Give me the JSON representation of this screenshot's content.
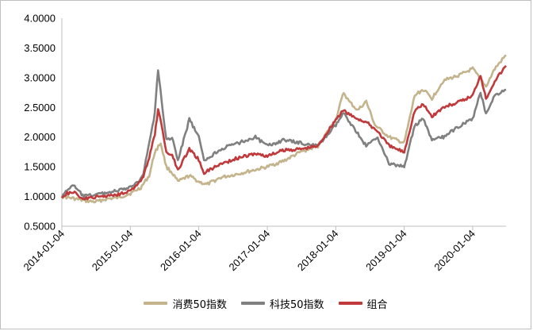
{
  "chart_data": {
    "type": "line",
    "title": "",
    "xlabel": "",
    "ylabel": "",
    "ylim": [
      0.5,
      4.0
    ],
    "y_ticks": [
      "0.5000",
      "1.0000",
      "1.5000",
      "2.0000",
      "2.5000",
      "3.0000",
      "3.5000",
      "4.0000"
    ],
    "x_range": [
      "2014-01-04",
      "2020-06-30"
    ],
    "x_ticks": [
      "2014-01-04",
      "2015-01-04",
      "2016-01-04",
      "2017-01-04",
      "2018-01-04",
      "2019-01-04",
      "2020-01-04"
    ],
    "grid": false,
    "legend": "bottom",
    "series": [
      {
        "name": "消费50指数",
        "color": "#c4b48c",
        "points": [
          [
            "2014-01-04",
            1.0
          ],
          [
            "2014-03-01",
            0.97
          ],
          [
            "2014-05-01",
            0.93
          ],
          [
            "2014-07-01",
            0.91
          ],
          [
            "2014-09-01",
            0.96
          ],
          [
            "2014-11-01",
            0.98
          ],
          [
            "2015-01-04",
            1.05
          ],
          [
            "2015-03-01",
            1.15
          ],
          [
            "2015-04-15",
            1.35
          ],
          [
            "2015-05-15",
            1.75
          ],
          [
            "2015-06-15",
            1.9
          ],
          [
            "2015-07-15",
            1.5
          ],
          [
            "2015-08-15",
            1.4
          ],
          [
            "2015-09-15",
            1.25
          ],
          [
            "2015-11-15",
            1.35
          ],
          [
            "2016-01-04",
            1.25
          ],
          [
            "2016-02-15",
            1.2
          ],
          [
            "2016-05-01",
            1.32
          ],
          [
            "2016-08-01",
            1.38
          ],
          [
            "2016-11-01",
            1.45
          ],
          [
            "2017-01-04",
            1.5
          ],
          [
            "2017-04-01",
            1.6
          ],
          [
            "2017-07-01",
            1.75
          ],
          [
            "2017-10-01",
            1.85
          ],
          [
            "2018-01-04",
            2.3
          ],
          [
            "2018-02-15",
            2.75
          ],
          [
            "2018-03-15",
            2.6
          ],
          [
            "2018-05-01",
            2.45
          ],
          [
            "2018-06-15",
            2.6
          ],
          [
            "2018-08-01",
            2.2
          ],
          [
            "2018-10-15",
            2.0
          ],
          [
            "2019-01-04",
            1.9
          ],
          [
            "2019-03-01",
            2.7
          ],
          [
            "2019-04-15",
            2.8
          ],
          [
            "2019-06-01",
            2.65
          ],
          [
            "2019-08-01",
            2.95
          ],
          [
            "2019-11-01",
            3.05
          ],
          [
            "2020-01-04",
            3.15
          ],
          [
            "2020-03-15",
            2.85
          ],
          [
            "2020-05-01",
            3.15
          ],
          [
            "2020-06-30",
            3.38
          ]
        ]
      },
      {
        "name": "科技50指数",
        "color": "#808080",
        "points": [
          [
            "2014-01-04",
            1.0
          ],
          [
            "2014-02-01",
            1.1
          ],
          [
            "2014-03-01",
            1.2
          ],
          [
            "2014-05-01",
            1.0
          ],
          [
            "2014-08-01",
            1.05
          ],
          [
            "2014-11-01",
            1.1
          ],
          [
            "2015-01-04",
            1.15
          ],
          [
            "2015-02-15",
            1.25
          ],
          [
            "2015-03-15",
            1.4
          ],
          [
            "2015-04-15",
            1.9
          ],
          [
            "2015-05-15",
            2.4
          ],
          [
            "2015-06-01",
            3.15
          ],
          [
            "2015-06-20",
            2.6
          ],
          [
            "2015-07-15",
            1.95
          ],
          [
            "2015-08-15",
            2.0
          ],
          [
            "2015-09-15",
            1.6
          ],
          [
            "2015-11-15",
            2.3
          ],
          [
            "2016-01-04",
            2.0
          ],
          [
            "2016-02-01",
            1.6
          ],
          [
            "2016-05-01",
            1.8
          ],
          [
            "2016-08-01",
            1.9
          ],
          [
            "2016-11-01",
            2.0
          ],
          [
            "2017-01-04",
            1.85
          ],
          [
            "2017-04-01",
            1.95
          ],
          [
            "2017-07-01",
            1.9
          ],
          [
            "2017-10-01",
            1.85
          ],
          [
            "2018-01-04",
            2.2
          ],
          [
            "2018-02-15",
            2.4
          ],
          [
            "2018-04-01",
            2.2
          ],
          [
            "2018-06-15",
            1.85
          ],
          [
            "2018-08-15",
            2.0
          ],
          [
            "2018-10-15",
            1.55
          ],
          [
            "2019-01-04",
            1.5
          ],
          [
            "2019-03-01",
            2.2
          ],
          [
            "2019-04-15",
            2.3
          ],
          [
            "2019-06-01",
            1.95
          ],
          [
            "2019-08-01",
            2.0
          ],
          [
            "2019-11-01",
            2.2
          ],
          [
            "2020-01-04",
            2.3
          ],
          [
            "2020-02-15",
            2.75
          ],
          [
            "2020-03-15",
            2.4
          ],
          [
            "2020-05-01",
            2.7
          ],
          [
            "2020-06-30",
            2.8
          ]
        ]
      },
      {
        "name": "组合",
        "color": "#c0393b",
        "points": [
          [
            "2014-01-04",
            1.0
          ],
          [
            "2014-02-01",
            1.05
          ],
          [
            "2014-03-01",
            1.08
          ],
          [
            "2014-05-01",
            0.96
          ],
          [
            "2014-08-01",
            1.0
          ],
          [
            "2014-11-01",
            1.04
          ],
          [
            "2015-01-04",
            1.1
          ],
          [
            "2015-02-15",
            1.2
          ],
          [
            "2015-03-15",
            1.35
          ],
          [
            "2015-04-15",
            1.65
          ],
          [
            "2015-05-15",
            2.05
          ],
          [
            "2015-06-01",
            2.45
          ],
          [
            "2015-06-20",
            2.2
          ],
          [
            "2015-07-15",
            1.75
          ],
          [
            "2015-08-15",
            1.7
          ],
          [
            "2015-09-15",
            1.45
          ],
          [
            "2015-11-15",
            1.8
          ],
          [
            "2016-01-04",
            1.62
          ],
          [
            "2016-02-01",
            1.4
          ],
          [
            "2016-05-01",
            1.55
          ],
          [
            "2016-08-01",
            1.65
          ],
          [
            "2016-11-01",
            1.72
          ],
          [
            "2017-01-04",
            1.68
          ],
          [
            "2017-04-01",
            1.78
          ],
          [
            "2017-07-01",
            1.8
          ],
          [
            "2017-10-01",
            1.85
          ],
          [
            "2018-01-04",
            2.3
          ],
          [
            "2018-02-15",
            2.45
          ],
          [
            "2018-04-01",
            2.35
          ],
          [
            "2018-06-15",
            2.25
          ],
          [
            "2018-08-15",
            2.1
          ],
          [
            "2018-10-15",
            1.85
          ],
          [
            "2019-01-04",
            1.75
          ],
          [
            "2019-03-01",
            2.45
          ],
          [
            "2019-04-15",
            2.55
          ],
          [
            "2019-06-01",
            2.35
          ],
          [
            "2019-08-01",
            2.5
          ],
          [
            "2019-11-01",
            2.6
          ],
          [
            "2020-01-04",
            2.7
          ],
          [
            "2020-02-15",
            3.05
          ],
          [
            "2020-03-15",
            2.65
          ],
          [
            "2020-05-01",
            2.95
          ],
          [
            "2020-06-30",
            3.2
          ]
        ]
      }
    ]
  }
}
